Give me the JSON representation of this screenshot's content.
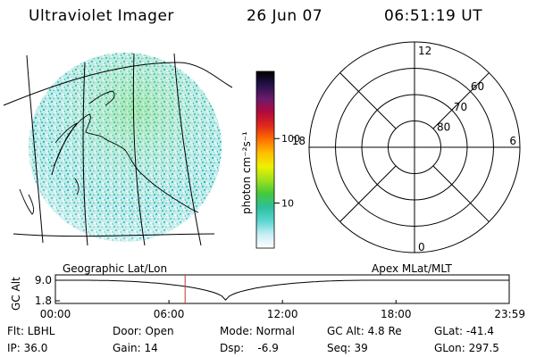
{
  "header": {
    "instrument": "Ultraviolet Imager",
    "date": "26 Jun 07",
    "time": "06:51:19 UT"
  },
  "colorbar": {
    "unit": "photon cm⁻²s⁻¹",
    "ticks": [
      {
        "label": "100",
        "value": 100
      },
      {
        "label": "10",
        "value": 10
      }
    ],
    "range": [
      2,
      1100
    ],
    "colors": [
      "#ffffff",
      "#c8eef4",
      "#5ad6d2",
      "#2ebf9c",
      "#45c83c",
      "#9ee11e",
      "#eef000",
      "#ffbe00",
      "#ff7000",
      "#e0281a",
      "#b20a3c",
      "#6a1a6a",
      "#24124c",
      "#000000"
    ]
  },
  "polar_grid": {
    "mlt_labels": [
      {
        "text": "12",
        "angle_deg": 0
      },
      {
        "text": "18",
        "angle_deg": 270
      },
      {
        "text": "6",
        "angle_deg": 90
      },
      {
        "text": "0",
        "angle_deg": 180
      }
    ],
    "lat_labels": [
      {
        "text": "60",
        "mlat": 60
      },
      {
        "text": "70",
        "mlat": 70
      },
      {
        "text": "80",
        "mlat": 80
      }
    ],
    "rings_mlat": [
      50,
      60,
      70,
      80
    ]
  },
  "altitude_plot": {
    "ylabel": "GC Alt",
    "left_caption": "Geographic Lat/Lon",
    "right_caption": "Apex  MLat/MLT",
    "y_ticks": [
      {
        "label": "9.0",
        "value": 9.0
      },
      {
        "label": "1.8",
        "value": 1.8
      }
    ],
    "x_ticks": [
      {
        "label": "00:00",
        "hours": 0
      },
      {
        "label": "06:00",
        "hours": 6
      },
      {
        "label": "12:00",
        "hours": 12
      },
      {
        "label": "18:00",
        "hours": 18
      },
      {
        "label": "23:59",
        "hours": 23.983
      }
    ],
    "current_time_hours": 6.855,
    "orbit": {
      "apogee": 9.0,
      "perigee": 1.8,
      "perigee_hours": 9.0
    }
  },
  "info": {
    "filter": "Flt: LBHL",
    "ip": "IP: 36.0",
    "door": "Door: Open",
    "gain": "Gain: 14",
    "mode": "Mode: Normal",
    "dsp": "Dsp:    -6.9",
    "gc_alt": "GC Alt: 4.8 Re",
    "seq": "Seq: 39",
    "glat": "GLat: -41.4",
    "glon": "GLon: 297.5"
  }
}
